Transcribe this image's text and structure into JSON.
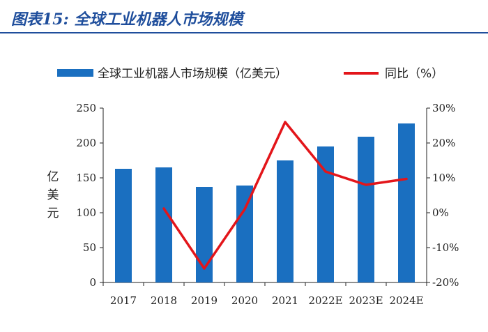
{
  "figure_title": "图表15: 全球工业机器人市场规模",
  "colors": {
    "bar": "#1a6fc0",
    "line": "#e3151a",
    "title": "#1f4e9c"
  },
  "chart_data": {
    "type": "bar",
    "categories": [
      "2017",
      "2018",
      "2019",
      "2020",
      "2021",
      "2022E",
      "2023E",
      "2024E"
    ],
    "series": [
      {
        "name": "全球工业机器人市场规模（亿美元）",
        "type": "bar",
        "axis": "left",
        "values": [
          163,
          165,
          137,
          139,
          175,
          195,
          209,
          228
        ]
      },
      {
        "name": "同比（%）",
        "type": "line",
        "axis": "right",
        "values": [
          null,
          1.2,
          -16.0,
          1.0,
          26.0,
          11.8,
          8.0,
          9.7
        ]
      }
    ],
    "ylabel": "亿美元",
    "y_left": {
      "range": [
        0,
        250
      ],
      "ticks": [
        "0",
        "50",
        "100",
        "150",
        "200",
        "250"
      ]
    },
    "y_right": {
      "range": [
        -20,
        30
      ],
      "ticks": [
        "-20%",
        "-10%",
        "0%",
        "10%",
        "20%",
        "30%"
      ]
    },
    "legend_position": "top",
    "grid": false
  }
}
